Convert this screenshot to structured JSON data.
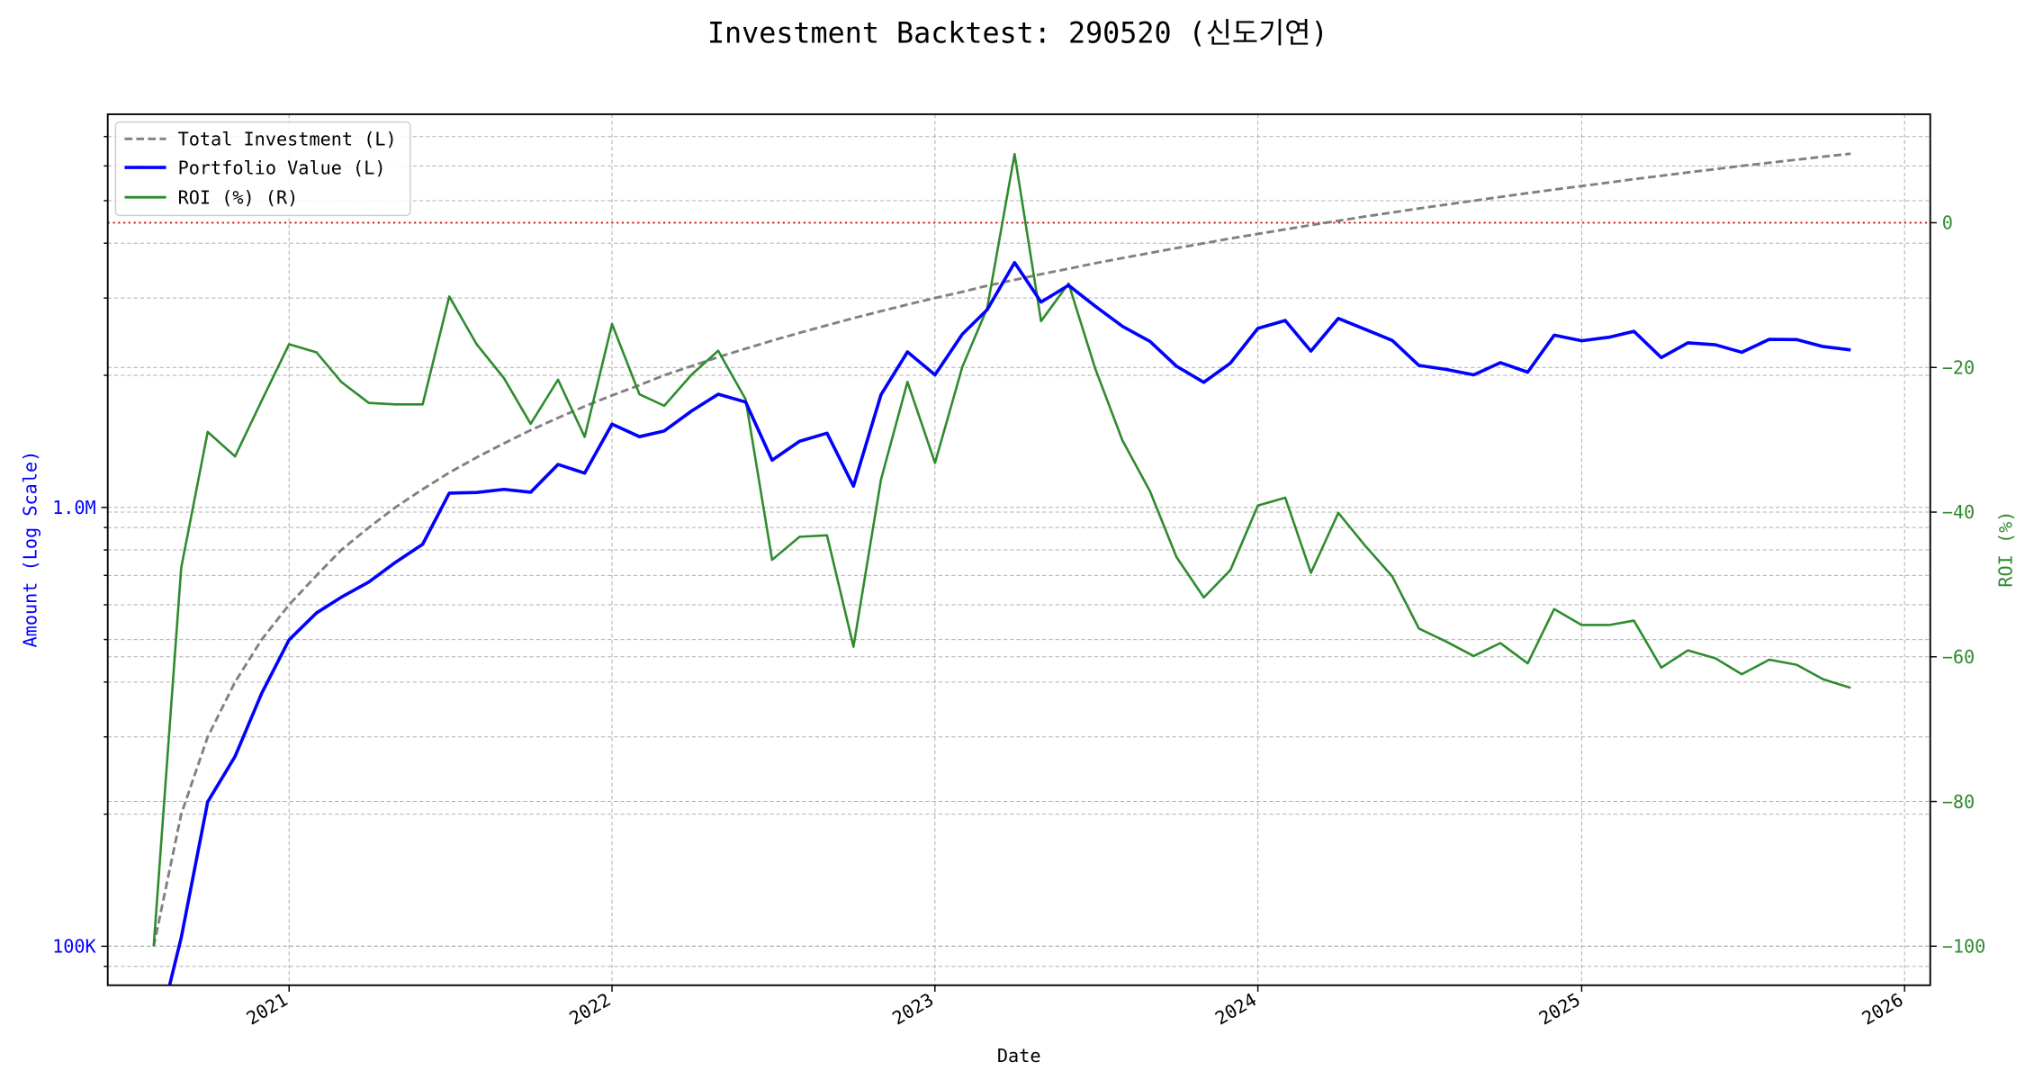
{
  "chart_data": {
    "type": "line",
    "title": "Investment Backtest: 290520 (신도기연)",
    "xlabel": "Date",
    "ylabel_left": "Amount (Log Scale)",
    "ylabel_right": "ROI (%)",
    "left_scale": "log",
    "ylim_left": [
      81500,
      7870000
    ],
    "ylim_right": [
      -105.4,
      15
    ],
    "xlim": [
      "2020-06-10",
      "2026-01-30"
    ],
    "grid": true,
    "legend_position": "top-left",
    "x_ticks": [
      "2021",
      "2022",
      "2023",
      "2024",
      "2025",
      "2026"
    ],
    "left_ticks": [
      {
        "value": 100000,
        "label": "100K"
      },
      {
        "value": 1000000,
        "label": "1.0M"
      }
    ],
    "right_ticks": [
      0,
      -20,
      -40,
      -60,
      -80,
      -100
    ],
    "reference_line": {
      "axis": "right",
      "value": 0,
      "color": "#cc0000",
      "style": "dotted"
    },
    "x": [
      "2020-08",
      "2020-09",
      "2020-10",
      "2020-11",
      "2020-12",
      "2021-01",
      "2021-02",
      "2021-03",
      "2021-04",
      "2021-05",
      "2021-06",
      "2021-07",
      "2021-08",
      "2021-09",
      "2021-10",
      "2021-11",
      "2021-12",
      "2022-01",
      "2022-02",
      "2022-03",
      "2022-04",
      "2022-05",
      "2022-06",
      "2022-07",
      "2022-08",
      "2022-09",
      "2022-10",
      "2022-11",
      "2022-12",
      "2023-01",
      "2023-02",
      "2023-03",
      "2023-04",
      "2023-05",
      "2023-06",
      "2023-07",
      "2023-08",
      "2023-09",
      "2023-10",
      "2023-11",
      "2023-12",
      "2024-01",
      "2024-02",
      "2024-03",
      "2024-04",
      "2024-05",
      "2024-06",
      "2024-07",
      "2024-08",
      "2024-09",
      "2024-10",
      "2024-11",
      "2024-12",
      "2025-01",
      "2025-02",
      "2025-03",
      "2025-04",
      "2025-05",
      "2025-06",
      "2025-07",
      "2025-08",
      "2025-09",
      "2025-10",
      "2025-11"
    ],
    "series": [
      {
        "name": "Total Investment (L)",
        "axis": "left",
        "color": "#808080",
        "style": "dashed",
        "values": [
          100000,
          200000,
          300000,
          400000,
          500000,
          600000,
          700000,
          800000,
          900000,
          1000000,
          1100000,
          1200000,
          1300000,
          1400000,
          1500000,
          1600000,
          1700000,
          1800000,
          1900000,
          2000000,
          2100000,
          2200000,
          2300000,
          2400000,
          2500000,
          2600000,
          2700000,
          2800000,
          2900000,
          3000000,
          3100000,
          3200000,
          3300000,
          3400000,
          3500000,
          3600000,
          3700000,
          3800000,
          3900000,
          4000000,
          4100000,
          4200000,
          4300000,
          4400000,
          4500000,
          4600000,
          4700000,
          4800000,
          4900000,
          5000000,
          5100000,
          5200000,
          5300000,
          5400000,
          5500000,
          5600000,
          5700000,
          5800000,
          5900000,
          6000000,
          6100000,
          6200000,
          6300000,
          6400000
        ]
      },
      {
        "name": "Portfolio Value (L)",
        "axis": "left",
        "color": "#0000ff",
        "style": "solid",
        "values": [
          0,
          104600,
          213300,
          270800,
          377000,
          499200,
          574700,
          624000,
          675900,
          749000,
          823900,
          1077600,
          1081600,
          1099000,
          1083000,
          1252800,
          1196800,
          1548000,
          1449700,
          1494000,
          1659000,
          1810600,
          1738800,
          1281600,
          1415000,
          1476800,
          1117800,
          1806000,
          2262000,
          2004000,
          2483100,
          2822400,
          3613500,
          2937600,
          3206000,
          2876400,
          2586300,
          2390200,
          2098200,
          1928000,
          2132000,
          2557800,
          2666000,
          2270400,
          2695500,
          2548400,
          2401700,
          2107200,
          2062900,
          2005000,
          2136900,
          2033200,
          2469800,
          2397600,
          2442000,
          2520000,
          2194500,
          2372200,
          2348200,
          2256000,
          2415600,
          2411800,
          2324700,
          2284800
        ]
      },
      {
        "name": "ROI (%) (R)",
        "axis": "right",
        "color": "#2e8b2e",
        "style": "solid",
        "values": [
          -100,
          -47.7,
          -28.9,
          -32.3,
          -24.6,
          -16.8,
          -17.9,
          -22.0,
          -24.9,
          -25.1,
          -25.1,
          -10.2,
          -16.8,
          -21.5,
          -27.8,
          -21.7,
          -29.6,
          -14.0,
          -23.7,
          -25.3,
          -21.0,
          -17.7,
          -24.4,
          -46.6,
          -43.4,
          -43.2,
          -58.6,
          -35.5,
          -22.0,
          -33.2,
          -19.9,
          -11.8,
          9.5,
          -13.6,
          -8.4,
          -20.1,
          -30.1,
          -37.1,
          -46.2,
          -51.8,
          -48.0,
          -39.1,
          -38.0,
          -48.4,
          -40.1,
          -44.6,
          -48.9,
          -56.1,
          -57.9,
          -59.9,
          -58.1,
          -60.9,
          -53.4,
          -55.6,
          -55.6,
          -55.0,
          -61.5,
          -59.1,
          -60.2,
          -62.4,
          -60.4,
          -61.1,
          -63.1,
          -64.3
        ]
      }
    ]
  }
}
